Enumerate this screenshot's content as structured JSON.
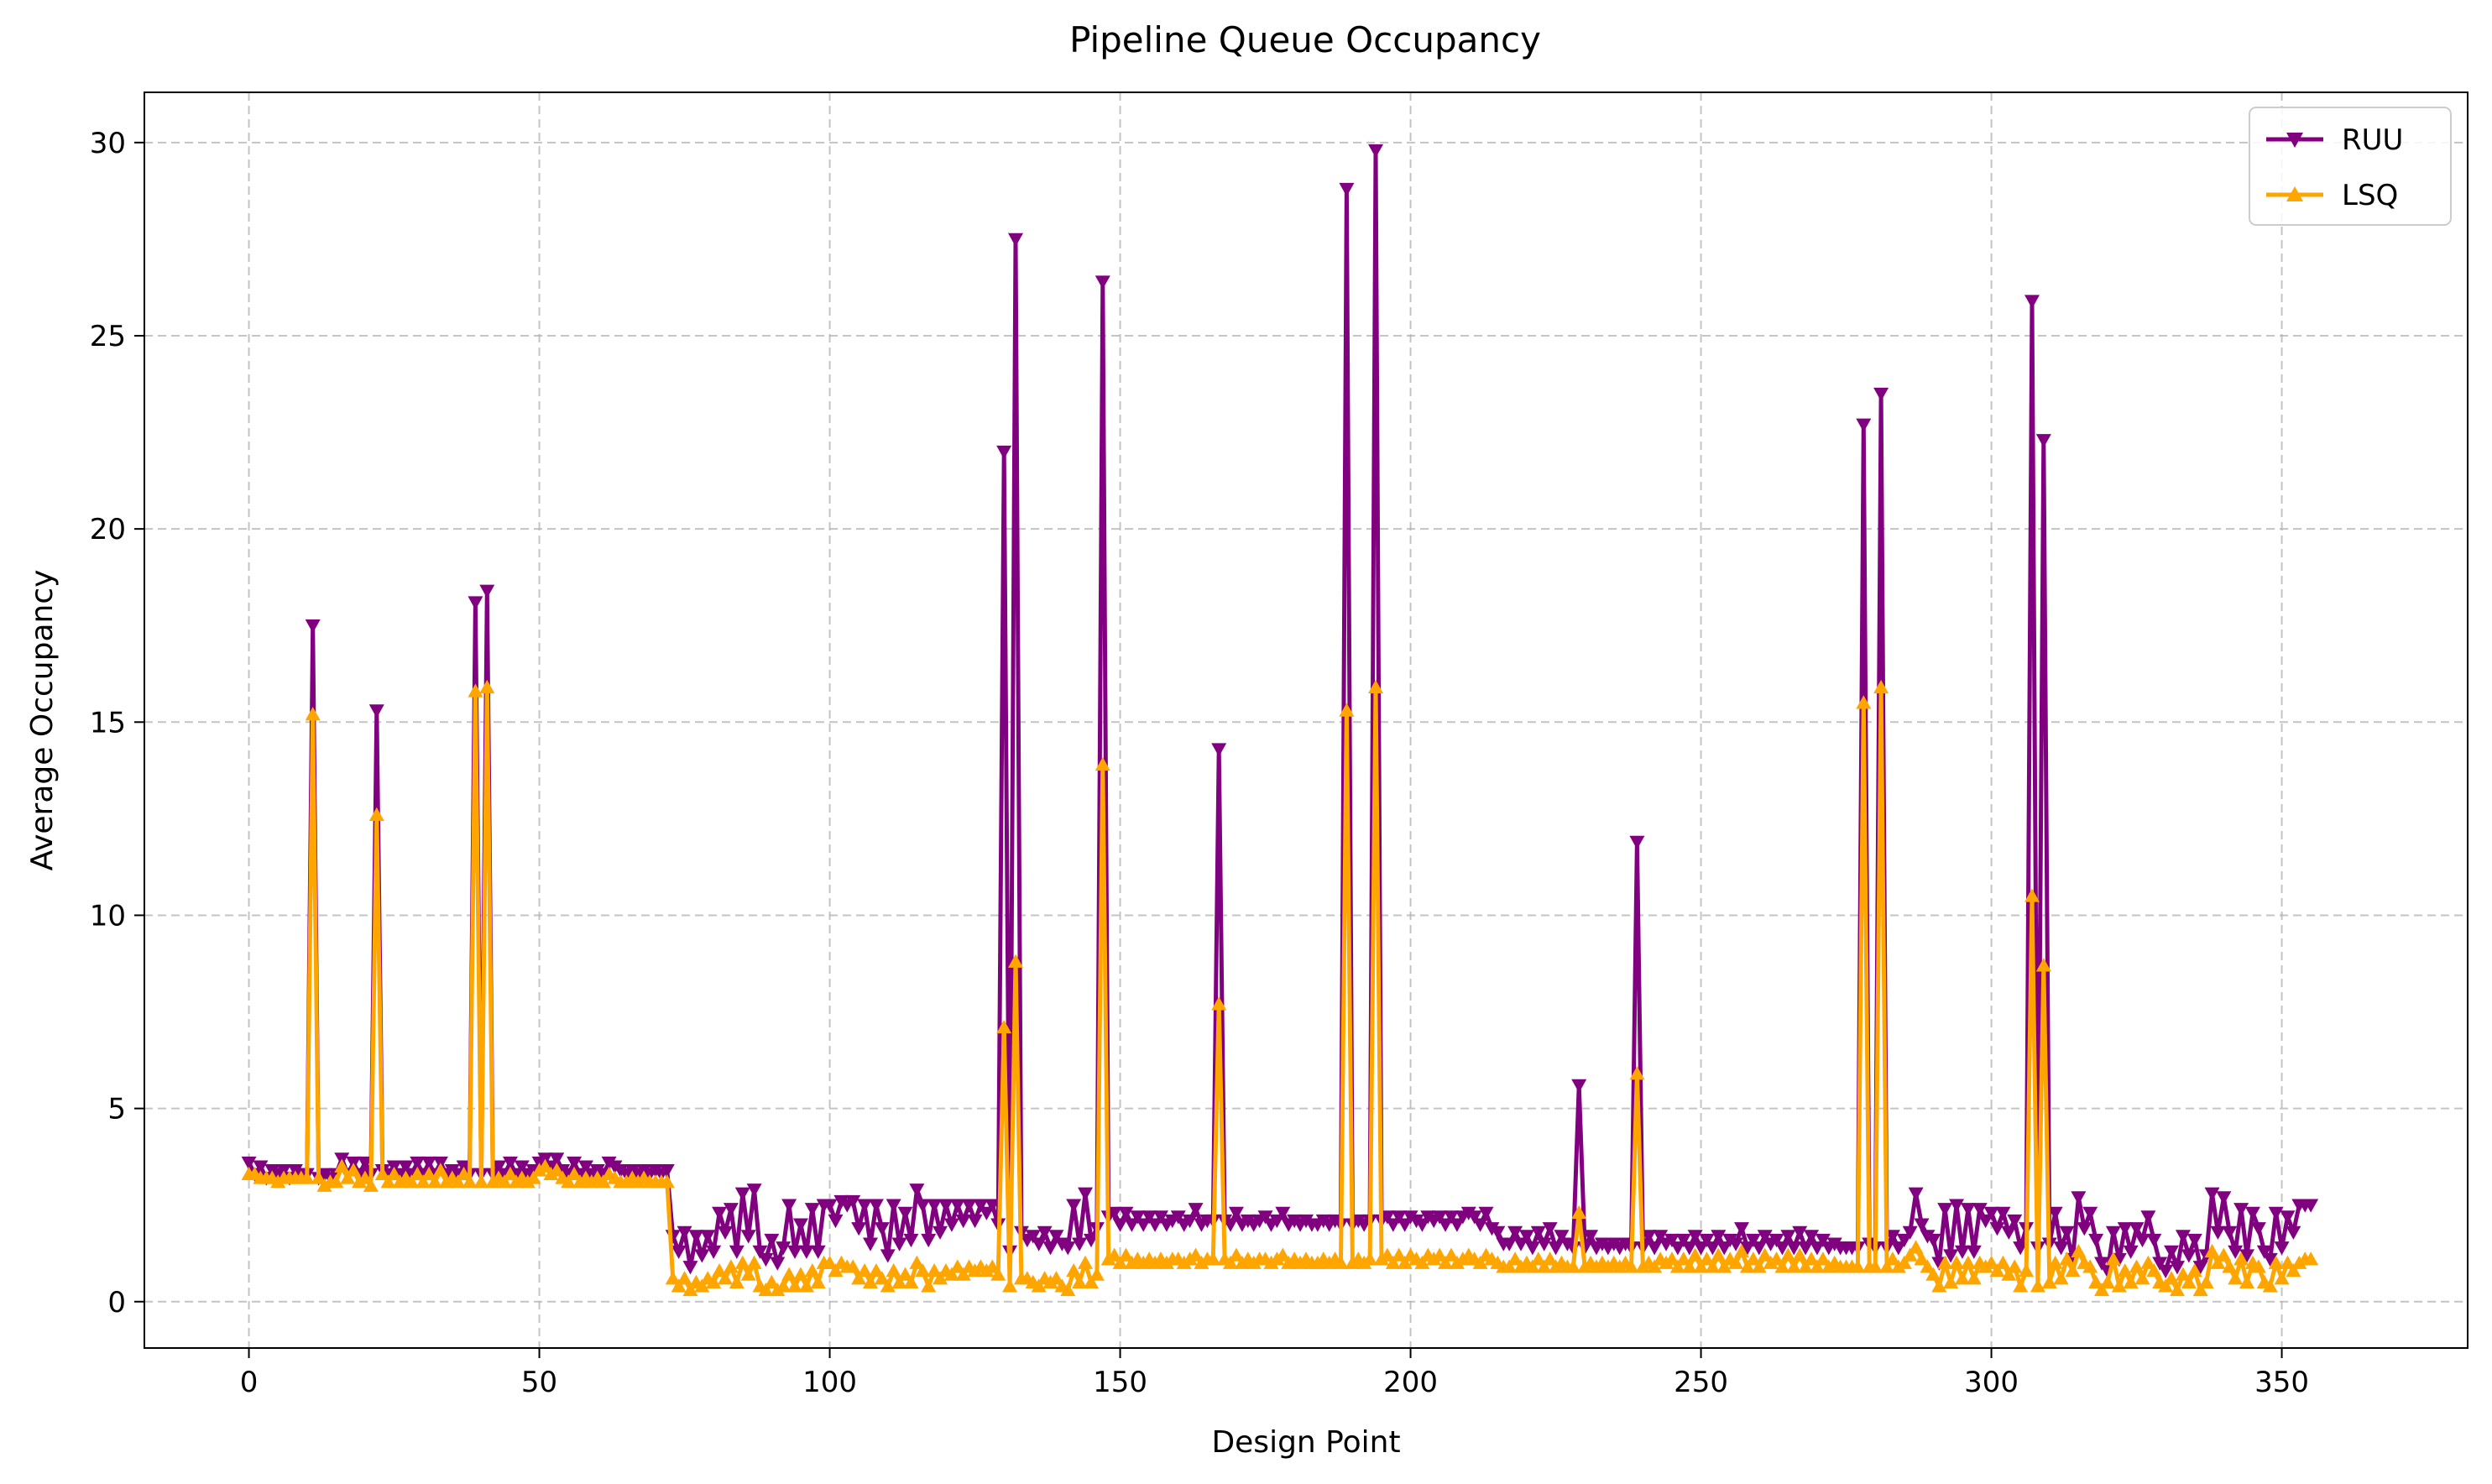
{
  "chart_data": {
    "type": "line",
    "title": "Pipeline Queue Occupancy",
    "xlabel": "Design Point",
    "ylabel": "Average Occupancy",
    "xlim": [
      -18,
      382
    ],
    "ylim": [
      -1.2,
      31.3
    ],
    "xticks": [
      0,
      50,
      100,
      150,
      200,
      250,
      300,
      350
    ],
    "yticks": [
      0,
      5,
      10,
      15,
      20,
      25,
      30
    ],
    "grid": true,
    "legend": "top-right",
    "x_start": 0,
    "series": [
      {
        "name": "RUU",
        "color": "#800080",
        "marker": "triangle-down",
        "values": [
          3.6,
          3.3,
          3.5,
          3.2,
          3.4,
          3.3,
          3.4,
          3.2,
          3.4,
          3.3,
          3.3,
          17.5,
          3.2,
          3.3,
          3.2,
          3.3,
          3.7,
          3.3,
          3.6,
          3.3,
          3.6,
          3.3,
          15.3,
          3.4,
          3.3,
          3.5,
          3.3,
          3.5,
          3.3,
          3.6,
          3.3,
          3.6,
          3.3,
          3.6,
          3.3,
          3.4,
          3.3,
          3.5,
          3.3,
          18.1,
          3.3,
          18.4,
          3.3,
          3.5,
          3.3,
          3.6,
          3.3,
          3.5,
          3.3,
          3.4,
          3.6,
          3.7,
          3.5,
          3.7,
          3.4,
          3.3,
          3.6,
          3.3,
          3.5,
          3.3,
          3.4,
          3.3,
          3.6,
          3.5,
          3.4,
          3.3,
          3.4,
          3.3,
          3.4,
          3.3,
          3.4,
          3.3,
          3.4,
          1.7,
          1.3,
          1.8,
          0.9,
          1.7,
          1.2,
          1.7,
          1.3,
          2.3,
          1.8,
          2.4,
          1.3,
          2.8,
          1.7,
          2.9,
          1.3,
          1.1,
          1.6,
          1.0,
          1.4,
          2.5,
          1.3,
          2.0,
          1.3,
          2.4,
          1.3,
          2.5,
          2.5,
          2.1,
          2.6,
          2.5,
          2.6,
          1.9,
          2.5,
          1.5,
          2.5,
          1.9,
          1.2,
          2.5,
          1.5,
          2.3,
          1.6,
          2.9,
          2.5,
          1.6,
          2.5,
          1.8,
          2.5,
          2.0,
          2.5,
          2.1,
          2.5,
          2.1,
          2.5,
          2.3,
          2.5,
          2.0,
          22.0,
          1.3,
          27.5,
          1.8,
          1.6,
          1.7,
          1.5,
          1.8,
          1.4,
          1.7,
          1.5,
          1.4,
          2.5,
          1.5,
          2.8,
          1.6,
          1.9,
          26.4,
          2.2,
          2.3,
          2.0,
          2.3,
          2.0,
          2.2,
          2.0,
          2.2,
          2.0,
          2.2,
          2.0,
          2.1,
          2.2,
          2.0,
          2.1,
          2.4,
          2.0,
          2.1,
          2.1,
          14.3,
          2.1,
          2.0,
          2.3,
          2.0,
          2.1,
          2.0,
          2.1,
          2.2,
          2.0,
          2.1,
          2.3,
          2.0,
          2.1,
          2.0,
          2.1,
          2.0,
          2.0,
          2.1,
          2.0,
          2.1,
          2.0,
          28.8,
          2.0,
          2.1,
          2.0,
          2.1,
          29.8,
          2.1,
          2.2,
          2.0,
          2.2,
          2.0,
          2.2,
          2.1,
          2.0,
          2.2,
          2.1,
          2.2,
          2.0,
          2.2,
          2.0,
          2.2,
          2.3,
          2.2,
          2.0,
          2.3,
          1.9,
          1.8,
          1.5,
          1.5,
          1.8,
          1.5,
          1.7,
          1.4,
          1.8,
          1.5,
          1.9,
          1.4,
          1.7,
          1.5,
          1.4,
          5.6,
          1.4,
          1.7,
          1.4,
          1.5,
          1.4,
          1.5,
          1.4,
          1.5,
          1.4,
          11.9,
          1.4,
          1.7,
          1.4,
          1.7,
          1.5,
          1.6,
          1.4,
          1.6,
          1.4,
          1.7,
          1.4,
          1.6,
          1.4,
          1.7,
          1.4,
          1.6,
          1.5,
          1.9,
          1.4,
          1.6,
          1.4,
          1.7,
          1.5,
          1.6,
          1.4,
          1.7,
          1.4,
          1.8,
          1.4,
          1.7,
          1.4,
          1.6,
          1.4,
          1.5,
          1.4,
          1.4,
          1.4,
          1.4,
          22.7,
          1.5,
          1.4,
          23.5,
          1.4,
          1.7,
          1.4,
          1.6,
          1.8,
          2.8,
          2.0,
          1.7,
          1.6,
          1.0,
          2.4,
          1.2,
          2.5,
          1.3,
          2.4,
          1.3,
          2.4,
          2.1,
          2.3,
          1.9,
          2.3,
          1.8,
          2.1,
          1.4,
          1.9,
          25.9,
          1.4,
          22.3,
          1.5,
          2.3,
          1.4,
          1.8,
          1.1,
          2.7,
          1.9,
          2.3,
          1.6,
          1.0,
          0.8,
          1.8,
          1.1,
          1.9,
          1.3,
          1.9,
          1.6,
          2.2,
          1.6,
          1.0,
          0.8,
          1.3,
          0.9,
          1.7,
          1.2,
          1.6,
          0.9,
          1.2,
          2.8,
          1.8,
          2.7,
          1.8,
          1.3,
          2.4,
          1.2,
          2.3,
          1.9,
          1.3,
          1.1,
          2.3,
          1.4,
          2.2,
          1.8,
          2.5,
          2.5,
          2.5
        ]
      },
      {
        "name": "LSQ",
        "color": "#FFA500",
        "marker": "triangle-up",
        "values": [
          3.3,
          3.3,
          3.2,
          3.2,
          3.2,
          3.1,
          3.2,
          3.2,
          3.2,
          3.2,
          3.2,
          15.2,
          3.2,
          3.0,
          3.1,
          3.1,
          3.5,
          3.2,
          3.4,
          3.1,
          3.2,
          3.0,
          12.6,
          3.3,
          3.1,
          3.3,
          3.1,
          3.2,
          3.1,
          3.3,
          3.1,
          3.3,
          3.1,
          3.4,
          3.1,
          3.2,
          3.1,
          3.3,
          3.1,
          15.8,
          3.1,
          15.9,
          3.1,
          3.2,
          3.1,
          3.3,
          3.1,
          3.2,
          3.1,
          3.2,
          3.4,
          3.5,
          3.3,
          3.4,
          3.2,
          3.1,
          3.3,
          3.1,
          3.2,
          3.1,
          3.2,
          3.1,
          3.3,
          3.2,
          3.1,
          3.1,
          3.2,
          3.1,
          3.2,
          3.1,
          3.1,
          3.1,
          3.1,
          0.6,
          0.4,
          0.6,
          0.3,
          0.5,
          0.4,
          0.6,
          0.5,
          0.8,
          0.6,
          0.9,
          0.5,
          1.0,
          0.7,
          1.0,
          0.4,
          0.3,
          0.5,
          0.3,
          0.4,
          0.7,
          0.4,
          0.7,
          0.4,
          0.8,
          0.5,
          1.0,
          1.0,
          0.8,
          1.0,
          0.9,
          0.9,
          0.6,
          0.8,
          0.5,
          0.8,
          0.6,
          0.4,
          0.8,
          0.5,
          0.7,
          0.5,
          1.0,
          0.8,
          0.4,
          0.8,
          0.6,
          0.8,
          0.7,
          0.9,
          0.7,
          0.9,
          0.8,
          0.9,
          0.8,
          0.9,
          0.7,
          7.1,
          0.4,
          8.8,
          0.6,
          0.6,
          0.5,
          0.4,
          0.6,
          0.5,
          0.6,
          0.4,
          0.3,
          0.8,
          0.5,
          1.0,
          0.5,
          0.7,
          13.9,
          1.1,
          1.2,
          1.0,
          1.2,
          1.0,
          1.1,
          1.0,
          1.1,
          1.0,
          1.1,
          1.0,
          1.1,
          1.1,
          1.0,
          1.1,
          1.2,
          1.0,
          1.1,
          1.1,
          7.7,
          1.1,
          1.0,
          1.2,
          1.0,
          1.1,
          1.0,
          1.1,
          1.1,
          1.0,
          1.1,
          1.2,
          1.0,
          1.1,
          1.0,
          1.1,
          1.0,
          1.0,
          1.1,
          1.0,
          1.1,
          1.0,
          15.3,
          1.0,
          1.1,
          1.0,
          1.1,
          15.9,
          1.1,
          1.2,
          1.0,
          1.2,
          1.0,
          1.2,
          1.1,
          1.0,
          1.2,
          1.1,
          1.2,
          1.0,
          1.2,
          1.0,
          1.1,
          1.2,
          1.1,
          1.0,
          1.2,
          1.1,
          1.0,
          0.9,
          0.9,
          1.1,
          0.9,
          1.0,
          0.9,
          1.1,
          0.9,
          1.1,
          0.9,
          1.0,
          0.9,
          0.9,
          2.3,
          0.9,
          1.0,
          0.9,
          1.0,
          0.9,
          1.0,
          0.9,
          1.0,
          0.9,
          5.9,
          0.9,
          1.0,
          0.9,
          1.1,
          1.0,
          1.1,
          0.9,
          1.1,
          0.9,
          1.2,
          0.9,
          1.1,
          0.9,
          1.2,
          0.9,
          1.1,
          1.0,
          1.3,
          0.9,
          1.1,
          0.9,
          1.2,
          1.0,
          1.1,
          0.9,
          1.2,
          0.9,
          1.2,
          0.9,
          1.1,
          0.9,
          1.1,
          0.9,
          1.0,
          0.9,
          0.9,
          0.9,
          0.9,
          15.5,
          0.9,
          0.9,
          15.9,
          0.9,
          1.1,
          0.9,
          1.0,
          1.2,
          1.4,
          1.1,
          0.9,
          0.7,
          0.4,
          1.0,
          0.5,
          1.0,
          0.6,
          1.0,
          0.6,
          1.0,
          0.9,
          1.0,
          0.8,
          1.0,
          0.7,
          0.9,
          0.4,
          0.8,
          10.5,
          0.4,
          8.7,
          0.5,
          1.0,
          0.6,
          1.1,
          0.8,
          1.3,
          1.0,
          0.9,
          0.5,
          0.3,
          0.5,
          1.1,
          0.4,
          0.8,
          0.5,
          0.9,
          0.6,
          1.0,
          0.8,
          0.5,
          0.4,
          0.6,
          0.3,
          0.7,
          0.5,
          0.8,
          0.3,
          0.5,
          1.3,
          1.0,
          1.2,
          0.9,
          0.6,
          1.1,
          0.5,
          1.0,
          0.9,
          0.5,
          0.4,
          1.0,
          0.6,
          1.0,
          0.8,
          1.0,
          1.1,
          1.1
        ]
      }
    ]
  }
}
